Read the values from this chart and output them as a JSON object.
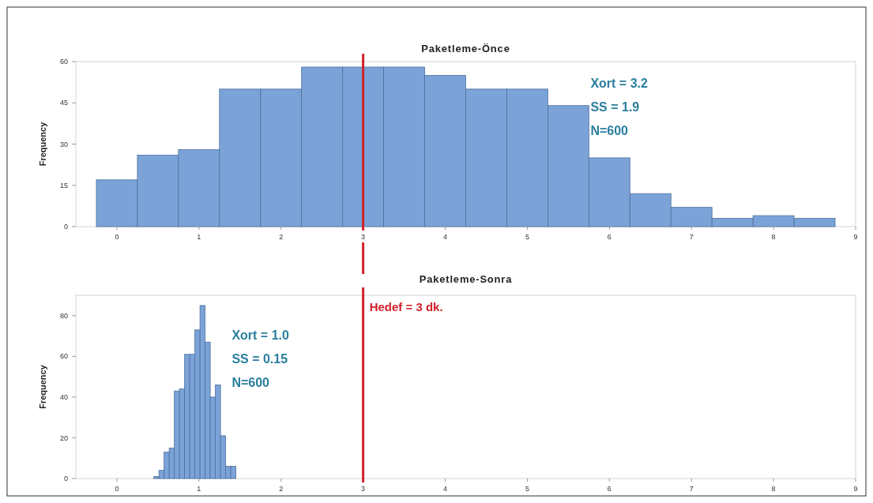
{
  "chart_data": [
    {
      "type": "histogram",
      "title": "Paketleme-Önce",
      "ylabel": "Frequency",
      "color": "#7ba3d8",
      "bins": [
        -0.25,
        0.25,
        0.75,
        1.25,
        1.75,
        2.25,
        2.75,
        3.25,
        3.75,
        4.25,
        4.75,
        5.25,
        5.75,
        6.25,
        6.75,
        7.25,
        7.75,
        8.25,
        8.75
      ],
      "values": [
        17,
        26,
        28,
        50,
        50,
        58,
        58,
        58,
        55,
        50,
        50,
        44,
        25,
        12,
        7,
        3,
        4,
        3
      ],
      "xlim": [
        -0.5,
        9
      ],
      "xticks": [
        0,
        1,
        2,
        3,
        4,
        5,
        6,
        7,
        8,
        9
      ],
      "ylim": [
        0,
        60
      ],
      "yticks": [
        0,
        15,
        30,
        45,
        60
      ],
      "ref_lines": [
        {
          "axis": "x",
          "value": 3,
          "color": "#d0202a"
        }
      ],
      "annotations": [
        "Xort = 3.2",
        "SS = 1.9",
        "N=600"
      ]
    },
    {
      "type": "histogram",
      "title": "Paketleme-Sonra",
      "ylabel": "Frequency",
      "color": "#7ba3d8",
      "bins": [
        0.45,
        0.5125,
        0.575,
        0.6375,
        0.7,
        0.7625,
        0.825,
        0.8875,
        0.95,
        1.0125,
        1.075,
        1.1375,
        1.2,
        1.2625,
        1.325,
        1.3875,
        1.45
      ],
      "values": [
        1,
        4,
        13,
        15,
        43,
        44,
        61,
        61,
        73,
        85,
        67,
        40,
        46,
        21,
        6,
        6
      ],
      "xlim": [
        -0.5,
        9
      ],
      "xticks": [
        0,
        1,
        2,
        3,
        4,
        5,
        6,
        7,
        8,
        9
      ],
      "ylim": [
        0,
        90
      ],
      "yticks": [
        0,
        20,
        40,
        60,
        80
      ],
      "ref_lines": [
        {
          "axis": "x",
          "value": 3,
          "label": "Hedef = 3 dk.",
          "color": "#d0202a"
        }
      ],
      "annotations": [
        "Xort = 1.0",
        "SS = 0.15",
        "N=600"
      ]
    }
  ]
}
